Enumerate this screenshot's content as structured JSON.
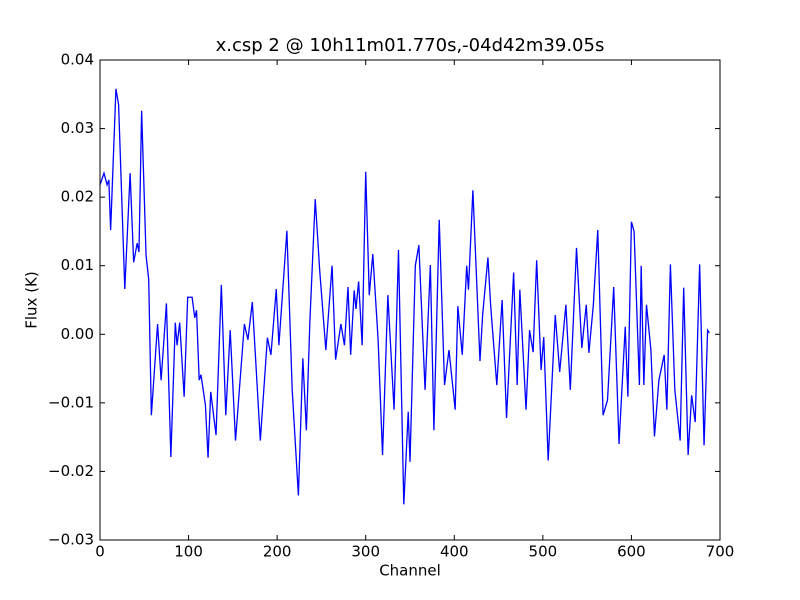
{
  "chart_data": {
    "type": "line",
    "title": "x.csp 2 @ 10h11m01.770s,-04d42m39.05s",
    "x_label": "Channel",
    "y_label": "Flux (K)",
    "color": "#0000ff",
    "x": [
      0,
      4.5,
      8,
      10,
      12,
      18,
      21,
      28,
      34,
      38,
      42,
      44,
      47,
      52,
      55,
      58,
      65,
      69,
      75,
      80,
      85,
      87,
      90,
      95,
      99,
      104,
      107,
      109,
      112,
      114,
      119,
      122,
      125,
      131,
      137,
      142,
      147,
      153,
      163,
      167,
      172,
      181,
      189,
      193,
      199,
      202,
      211,
      217,
      224,
      229,
      233,
      237,
      243,
      248,
      255,
      262,
      266,
      272,
      276,
      280,
      283,
      287,
      289,
      292,
      296,
      300,
      304,
      308,
      314,
      319,
      325,
      332,
      337,
      343,
      348,
      350,
      356,
      360,
      367,
      373,
      377,
      383,
      389,
      394,
      401,
      404,
      409,
      414,
      416,
      421,
      429,
      432,
      438,
      441,
      448,
      454,
      459,
      467,
      471,
      474,
      481,
      485,
      489,
      493,
      498,
      501,
      506,
      514,
      519,
      526,
      531,
      538,
      544,
      549,
      552,
      557,
      562,
      568,
      573,
      580,
      586,
      593,
      596,
      600,
      603,
      609,
      611,
      614,
      617,
      622,
      626,
      631,
      637,
      640,
      644,
      649,
      655,
      659,
      664,
      668,
      672,
      677,
      682,
      686,
      688
    ],
    "values": [
      0.0218,
      0.0235,
      0.0218,
      0.0225,
      0.0152,
      0.0358,
      0.0335,
      0.0066,
      0.0235,
      0.0105,
      0.0133,
      0.012,
      0.0326,
      0.0115,
      0.008,
      -0.0118,
      0.0015,
      -0.0067,
      0.0045,
      -0.0179,
      0.0017,
      -0.0016,
      0.0017,
      -0.0091,
      0.0054,
      0.0054,
      0.0024,
      0.0035,
      -0.0067,
      -0.0059,
      -0.0103,
      -0.018,
      -0.0084,
      -0.0147,
      0.0072,
      -0.0118,
      0.0006,
      -0.0155,
      0.0015,
      -0.0008,
      0.0047,
      -0.0155,
      -0.0005,
      -0.003,
      0.0066,
      -0.0016,
      0.0151,
      -0.0081,
      -0.0235,
      -0.0035,
      -0.014,
      0.002,
      0.0197,
      0.0094,
      -0.0023,
      0.01,
      -0.0037,
      0.0015,
      -0.0016,
      0.0069,
      -0.003,
      0.0064,
      0.0037,
      0.0077,
      -0.0016,
      0.0237,
      0.0057,
      0.0117,
      -0.0008,
      -0.0176,
      0.0057,
      -0.011,
      0.0123,
      -0.0248,
      -0.0113,
      -0.0186,
      0.01,
      0.013,
      -0.0081,
      0.0101,
      -0.014,
      0.0167,
      -0.0074,
      -0.0023,
      -0.011,
      0.0041,
      -0.003,
      0.01,
      0.0065,
      0.021,
      -0.0039,
      0.0028,
      0.0112,
      0.0043,
      -0.0074,
      0.005,
      -0.0122,
      0.009,
      -0.0074,
      0.0065,
      -0.011,
      0.0006,
      -0.0026,
      0.0108,
      -0.0052,
      -0.0004,
      -0.0184,
      0.0028,
      -0.0055,
      0.0043,
      -0.0081,
      0.0126,
      -0.002,
      0.0043,
      -0.0027,
      0.0043,
      0.0152,
      -0.0118,
      -0.0096,
      0.0069,
      -0.016,
      0.0011,
      -0.0091,
      0.0164,
      0.015,
      -0.0074,
      0.01,
      -0.0074,
      0.0043,
      -0.0023,
      -0.0149,
      -0.0067,
      -0.003,
      -0.011,
      0.0102,
      -0.0081,
      -0.0155,
      0.0068,
      -0.0176,
      -0.0089,
      -0.0128,
      0.0102,
      -0.0162,
      0.0006,
      0.0002
    ],
    "xlim": [
      0,
      700
    ],
    "xticks": [
      0,
      100,
      200,
      300,
      400,
      500,
      600,
      700
    ],
    "ylim": [
      -0.03,
      0.04
    ],
    "yticks": [
      {
        "value": -0.03,
        "label": "−0.03"
      },
      {
        "value": -0.02,
        "label": "−0.02"
      },
      {
        "value": -0.01,
        "label": "−0.01"
      },
      {
        "value": 0,
        "label": "0.00"
      },
      0.01,
      0.02,
      0.03,
      0.04
    ],
    "grid": false
  }
}
